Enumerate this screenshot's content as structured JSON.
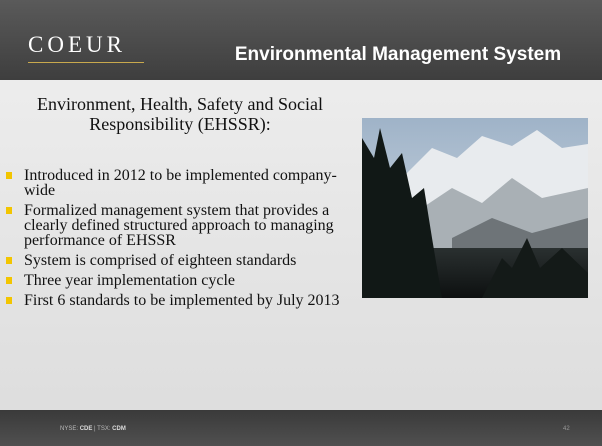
{
  "header": {
    "logo": "COEUR",
    "title": "Environmental Management System"
  },
  "body": {
    "heading": "Environment, Health, Safety and Social Responsibility (EHSSR):",
    "bullets": [
      "Introduced in 2012 to be implemented company-wide",
      "Formalized management system that provides a clearly defined structured approach to managing performance of EHSSR",
      "System is comprised of eighteen standards",
      "Three year implementation cycle",
      "First 6 standards to be implemented by July 2013"
    ]
  },
  "footer": {
    "nyse_label": "NYSE:",
    "nyse_symbol": "CDE",
    "separator": "|",
    "tsx_label": "TSX:",
    "tsx_symbol": "CDM",
    "page": "42"
  }
}
